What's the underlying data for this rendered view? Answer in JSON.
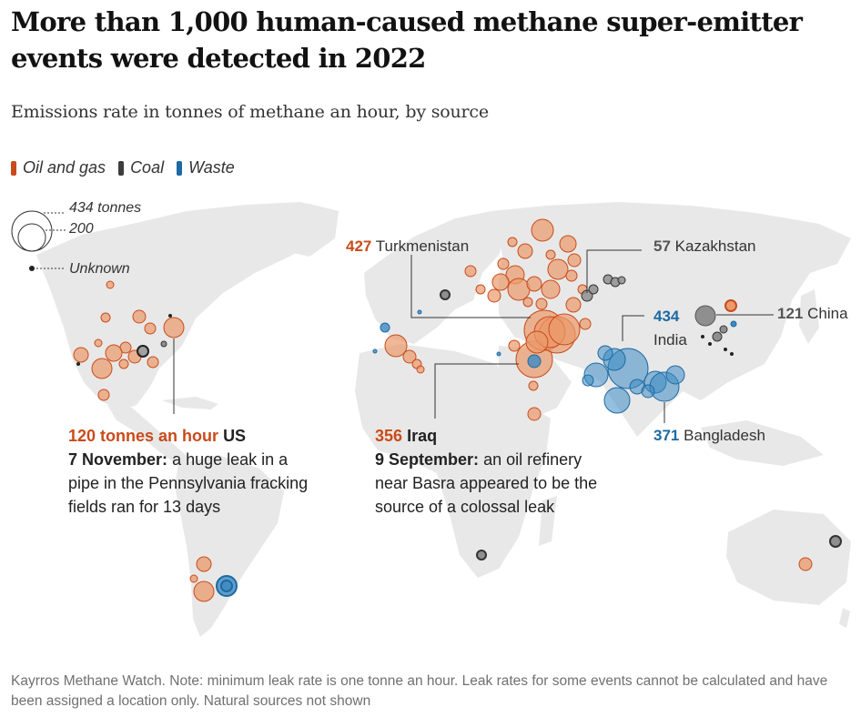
{
  "title": "More than 1,000 human-caused methane super-emitter events were detected in 2022",
  "subtitle": "Emissions rate in tonnes of methane an hour, by source",
  "colors": {
    "oil": "#c94b1b",
    "oil_fill": "#eb9a6b",
    "coal": "#3d3d3d",
    "coal_fill": "#8f8f8f",
    "waste": "#1c6aa3",
    "waste_fill": "#3d8ac2"
  },
  "legend": [
    {
      "key": "oil",
      "label": "Oil and gas"
    },
    {
      "key": "coal",
      "label": "Coal"
    },
    {
      "key": "waste",
      "label": "Waste"
    }
  ],
  "size_key": {
    "large": "434 tonnes",
    "small": "200",
    "unknown": "Unknown"
  },
  "labels": {
    "turkmenistan": {
      "value": "427",
      "name": "Turkmenistan"
    },
    "kazakhstan": {
      "value": "57",
      "name": "Kazakhstan"
    },
    "china": {
      "value": "121",
      "name": "China"
    },
    "india": {
      "value": "434",
      "name": "India"
    },
    "bangladesh": {
      "value": "371",
      "name": "Bangladesh"
    }
  },
  "annotations": {
    "us": {
      "value_text": "120 tonnes an hour",
      "country": "US",
      "date": "7 November:",
      "text": "a huge leak in a pipe in the Pennsylvania fracking fields ran for 13 days"
    },
    "iraq": {
      "value": "356",
      "country": "Iraq",
      "date": "9 September:",
      "text": "an oil refinery near Basra appeared to be the source of a colossal leak"
    }
  },
  "source": "Kayrros Methane Watch. Note: minimum leak rate is one tonne an hour. Leak rates for some events cannot be calculated and have been assigned a location only. Natural sources not shown"
}
